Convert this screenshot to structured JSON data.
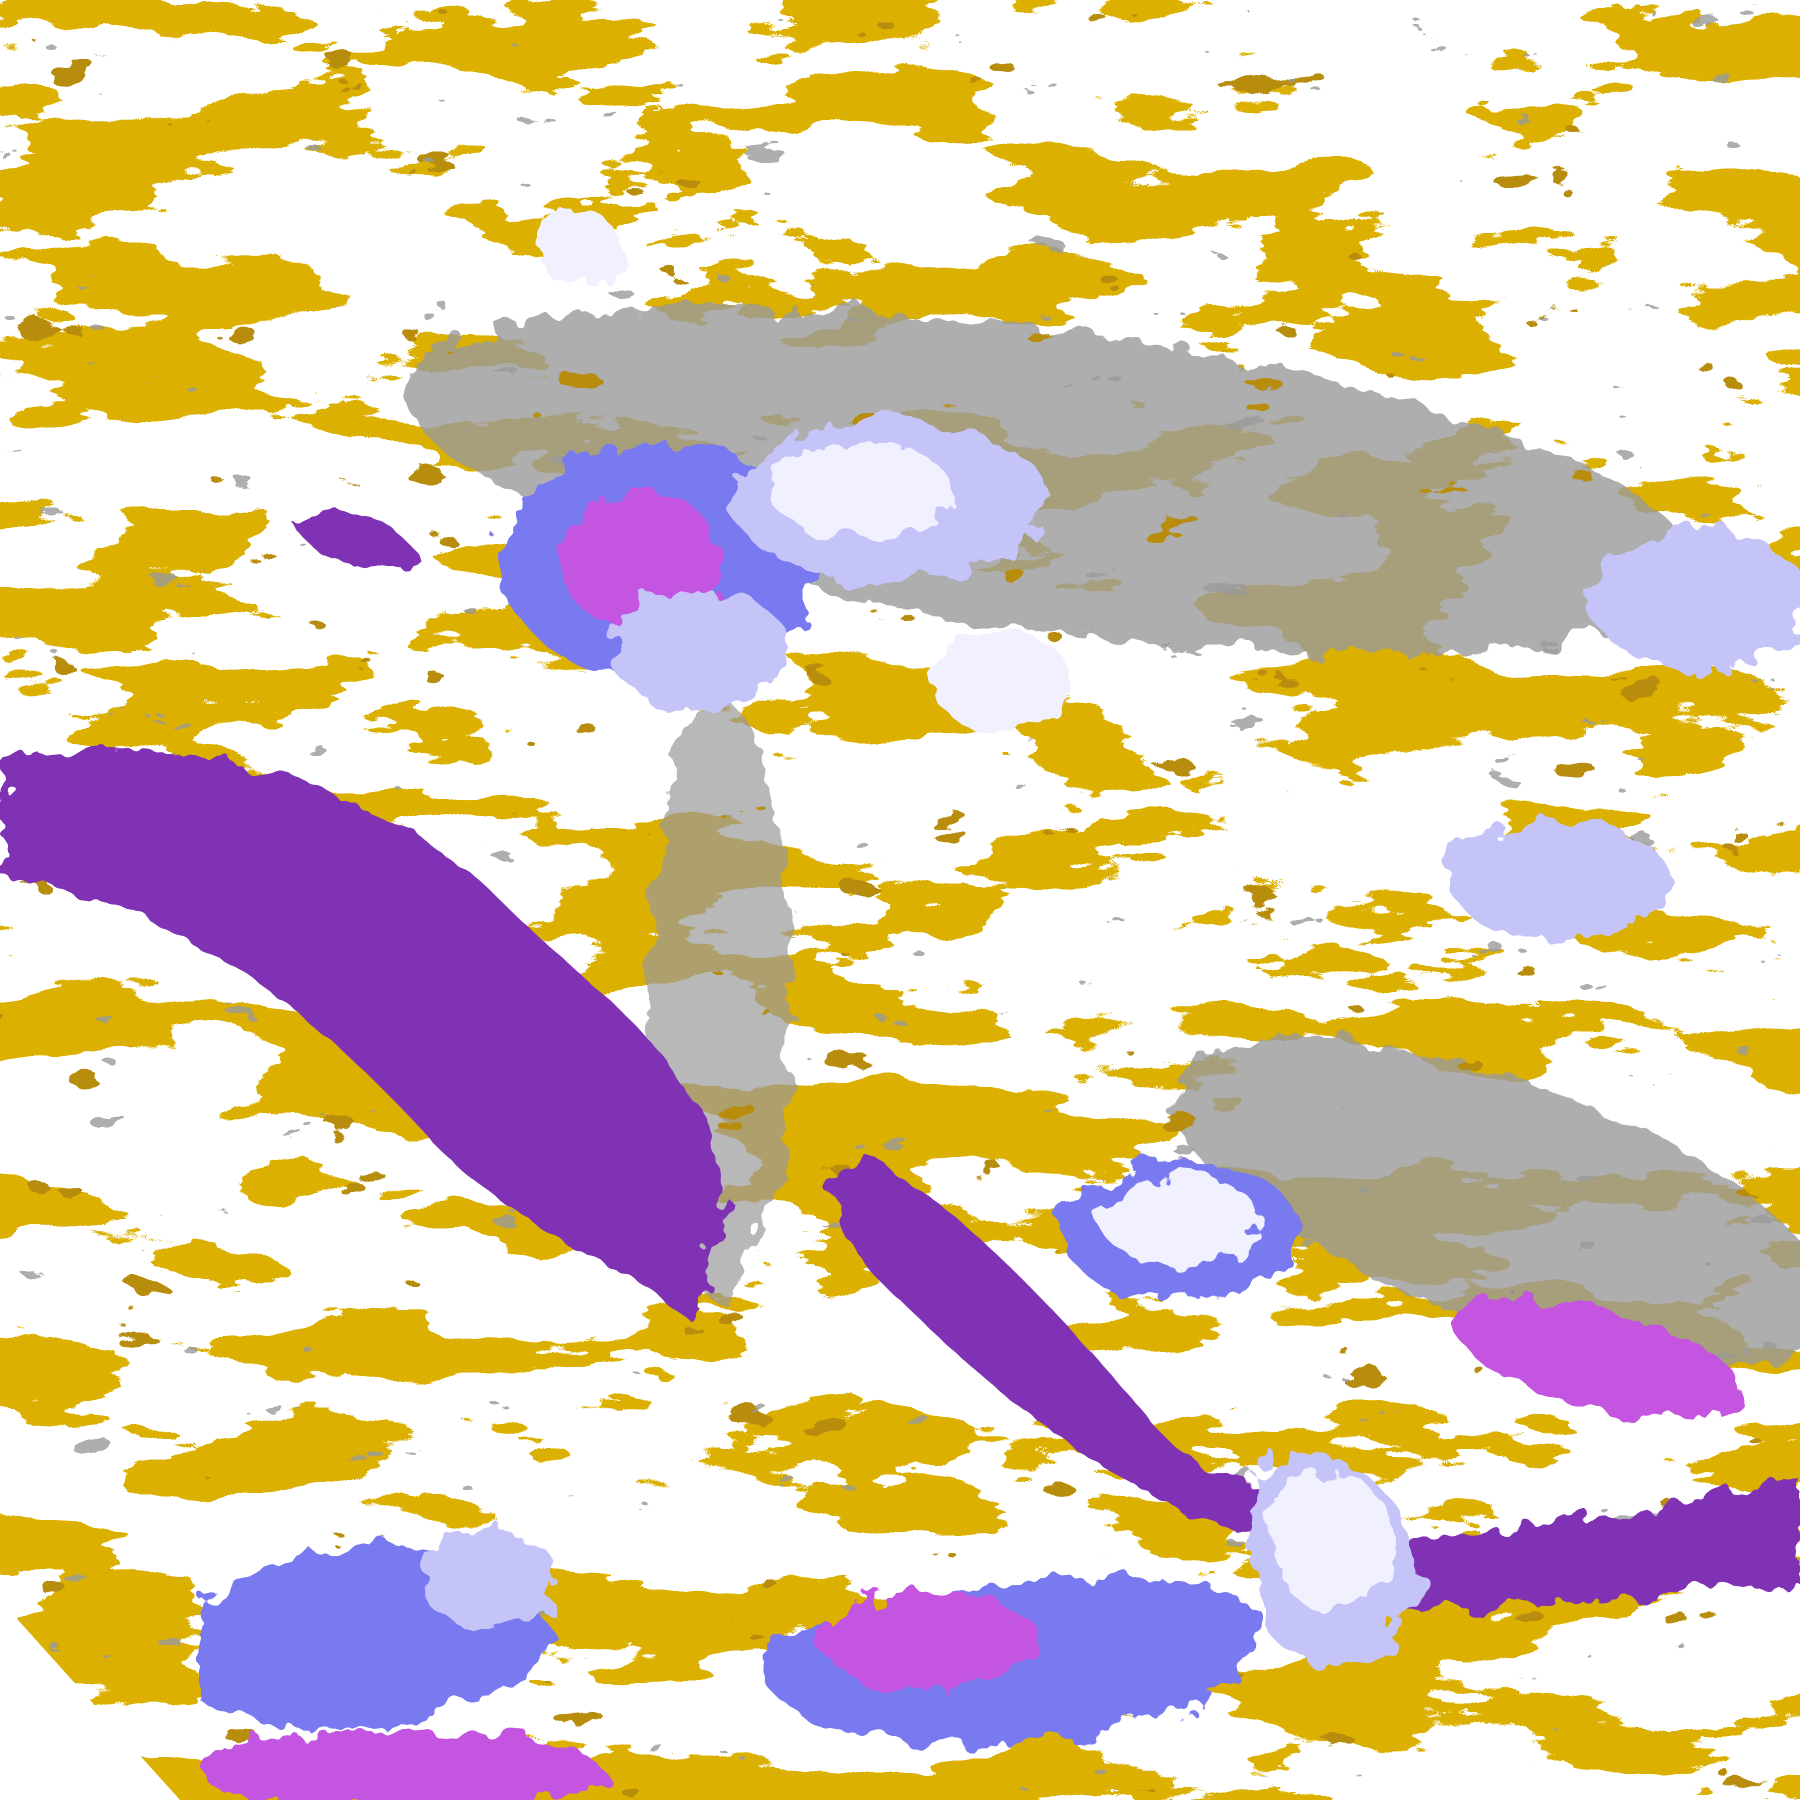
{
  "image": {
    "kind": "satellite cloud classification composite",
    "palette": {
      "clear": "#ffffff",
      "gold": "#dcb000",
      "dark_gold": "#b88c08",
      "gray": "#9a9a9a",
      "purple": "#8033b4",
      "magenta": "#c455e0",
      "blue_violet": "#7a7af0",
      "lavender": "#c4c4f8",
      "pale": "#f0f0ff"
    }
  }
}
